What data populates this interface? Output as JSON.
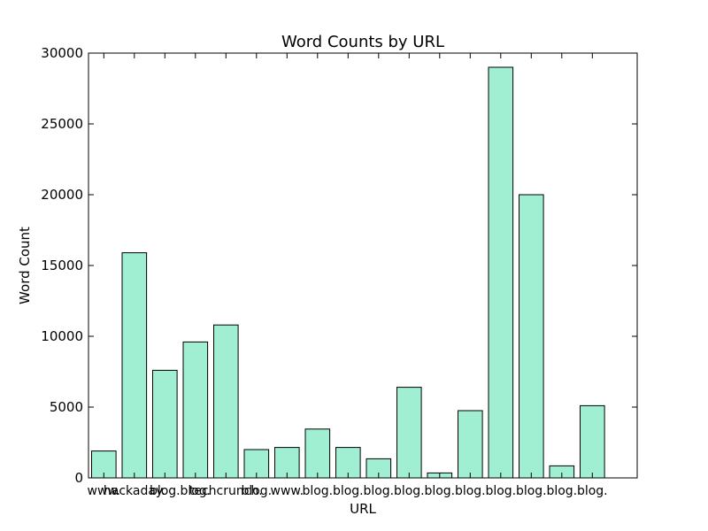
{
  "chart_data": {
    "type": "bar",
    "title": "Word Counts by URL",
    "xlabel": "URL",
    "ylabel": "Word Count",
    "ylim": [
      0,
      30000
    ],
    "yticks": [
      0,
      5000,
      10000,
      15000,
      20000,
      25000,
      30000
    ],
    "grid": false,
    "bar_color": "#a1efd2",
    "bar_edge_color": "#000000",
    "categories": [
      "www.",
      "hackaday.",
      "blog.",
      "blog.",
      "techcrunch.",
      "blog.",
      "www.",
      "blog.",
      "blog.",
      "blog.",
      "blog.",
      "blog.",
      "blog.",
      "blog.",
      "blog.",
      "blog.",
      "blog."
    ],
    "values": [
      1900,
      15900,
      7600,
      9600,
      10800,
      2000,
      2150,
      3450,
      2150,
      1350,
      6400,
      350,
      4750,
      29000,
      20000,
      850,
      5100
    ]
  }
}
